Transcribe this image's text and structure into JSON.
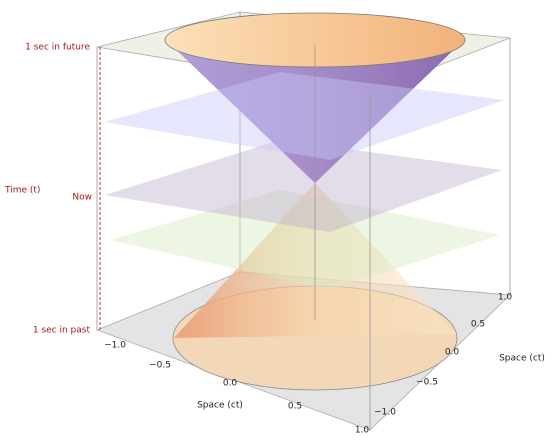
{
  "axes": {
    "time": {
      "label": "Time (t)",
      "ticks": [
        "1 sec in future",
        "Now",
        "1 sec in past"
      ]
    },
    "space_front": {
      "label": "Space (ct)",
      "ticks": [
        "−1.0",
        "−0.5",
        "0.0",
        "0.5",
        "1.0"
      ]
    },
    "space_side": {
      "label": "Space (ct)",
      "ticks": [
        "−1.0",
        "−0.5",
        "0.0",
        "0.5",
        "1.0"
      ]
    }
  }
}
